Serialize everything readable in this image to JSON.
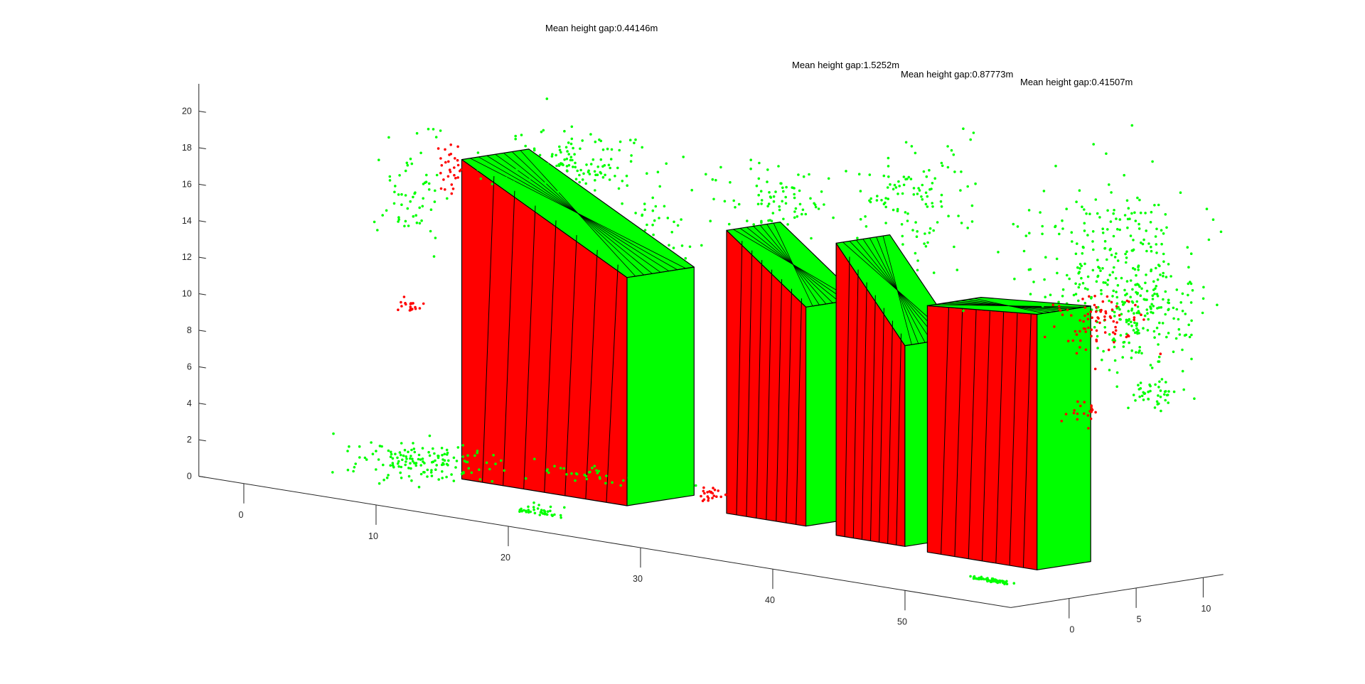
{
  "chart_data": {
    "type": "scatter",
    "dimensions": "3d",
    "annotations": [
      "Mean height gap:0.44146m",
      "Mean height gap:1.5252m",
      "Mean height gap:0.87773m",
      "Mean height gap:0.41507m"
    ],
    "x_ticks": [
      "0",
      "10",
      "20",
      "30",
      "40",
      "50"
    ],
    "y_ticks": [
      "0",
      "5",
      "10"
    ],
    "z_ticks": [
      "0",
      "2",
      "4",
      "6",
      "8",
      "10",
      "12",
      "14",
      "16",
      "18",
      "20"
    ],
    "xlim": [
      -3.4,
      58
    ],
    "ylim": [
      -4.35,
      11.5
    ],
    "zlim": [
      0,
      21.5
    ],
    "grid": false,
    "colors": {
      "red": "#ff0000",
      "green": "#00ff00",
      "edge": "#000000",
      "axis": "#262626"
    },
    "buildings": [
      {
        "x": [
          7,
          19.5
        ],
        "y": [
          5,
          10
        ],
        "height": [
          17.5,
          12.5
        ]
      },
      {
        "x": [
          25,
          31
        ],
        "y": [
          7,
          11
        ],
        "height": [
          15.5,
          12
        ]
      },
      {
        "x": [
          34.3,
          39.5
        ],
        "y": [
          6,
          10
        ],
        "height": [
          16,
          11
        ]
      },
      {
        "x": [
          41.7,
          50
        ],
        "y": [
          5.5,
          9.5
        ],
        "height": [
          13.5,
          14
        ]
      }
    ],
    "point_clusters": [
      {
        "color": "green",
        "center": [
          0,
          8,
          14
        ],
        "spread": [
          1,
          2,
          3
        ],
        "count": 60
      },
      {
        "color": "green",
        "center": [
          5,
          4,
          0.8
        ],
        "spread": [
          3,
          3,
          0.8
        ],
        "count": 150
      },
      {
        "color": "green",
        "center": [
          10,
          10,
          17
        ],
        "spread": [
          4,
          3,
          1.5
        ],
        "count": 150
      },
      {
        "color": "green",
        "center": [
          14,
          12,
          12
        ],
        "spread": [
          1.5,
          2,
          4
        ],
        "count": 100
      },
      {
        "color": "green",
        "center": [
          24,
          12,
          16.5
        ],
        "spread": [
          3,
          3,
          1.5
        ],
        "count": 80
      },
      {
        "color": "green",
        "center": [
          32,
          14,
          17
        ],
        "spread": [
          3,
          3,
          3
        ],
        "count": 120
      },
      {
        "color": "green",
        "center": [
          49,
          12,
          16
        ],
        "spread": [
          4,
          3,
          4
        ],
        "count": 250
      },
      {
        "color": "green",
        "center": [
          54,
          10,
          14
        ],
        "spread": [
          2,
          3,
          3
        ],
        "count": 150
      },
      {
        "color": "green",
        "center": [
          58,
          6,
          10.5
        ],
        "spread": [
          1,
          1,
          0.7
        ],
        "count": 40
      },
      {
        "color": "green",
        "center": [
          18,
          5,
          1.4
        ],
        "spread": [
          5,
          1,
          0.3
        ],
        "count": 40
      },
      {
        "color": "green",
        "center": [
          52,
          0,
          0.3
        ],
        "spread": [
          1.2,
          0.3,
          0.05
        ],
        "count": 60
      },
      {
        "color": "green",
        "center": [
          18,
          0,
          0
        ],
        "spread": [
          1.5,
          0.4,
          0.3
        ],
        "count": 40
      },
      {
        "color": "red",
        "center": [
          3,
          8,
          16.3
        ],
        "spread": [
          0.7,
          1,
          1
        ],
        "count": 30
      },
      {
        "color": "red",
        "center": [
          2,
          6,
          8.8
        ],
        "spread": [
          0.5,
          0.5,
          0.3
        ],
        "count": 20
      },
      {
        "color": "red",
        "center": [
          52,
          8,
          13.5
        ],
        "spread": [
          2,
          2,
          1.5
        ],
        "count": 80
      },
      {
        "color": "red",
        "center": [
          29,
          2,
          2
        ],
        "spread": [
          0.8,
          0.5,
          0.3
        ],
        "count": 25
      },
      {
        "color": "red",
        "center": [
          55,
          4,
          9.5
        ],
        "spread": [
          0.5,
          1,
          0.8
        ],
        "count": 20
      }
    ]
  }
}
